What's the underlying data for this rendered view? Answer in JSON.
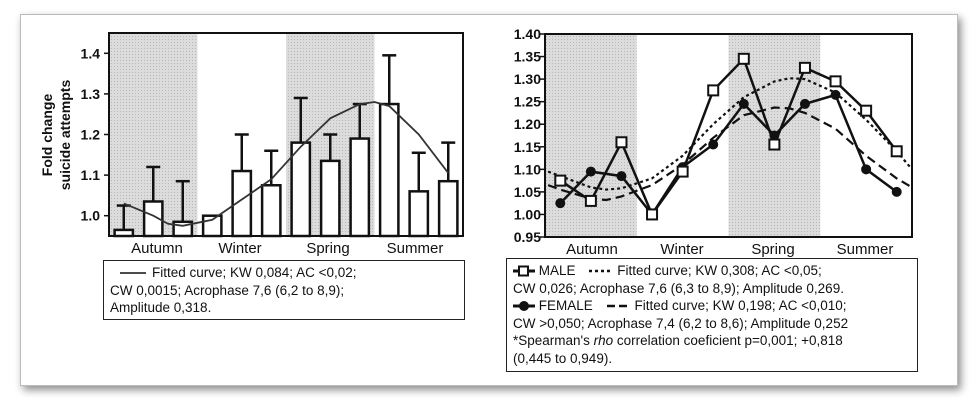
{
  "chart_data": [
    {
      "type": "bar",
      "ylabel": [
        "Fold change",
        "suicide attempts"
      ],
      "ylim": [
        0.95,
        1.45
      ],
      "yticks": [
        "1.0",
        "1.1",
        "1.2",
        "1.3",
        "1.4"
      ],
      "season_labels": [
        "Autumn",
        "Winter",
        "Spring",
        "Summer"
      ],
      "shaded_seasons": [
        "Autumn",
        "Spring"
      ],
      "values": [
        0.965,
        1.035,
        0.985,
        1.0,
        1.11,
        1.075,
        1.18,
        1.135,
        1.19,
        1.275,
        1.06,
        1.085
      ],
      "error_upper": [
        1.025,
        1.12,
        1.085,
        null,
        1.2,
        1.16,
        1.29,
        1.2,
        1.275,
        1.395,
        1.155,
        1.18
      ],
      "fitted_curve": [
        [
          0,
          1.03
        ],
        [
          1,
          1.0
        ],
        [
          1.5,
          0.98
        ],
        [
          2,
          0.975
        ],
        [
          3,
          0.99
        ],
        [
          4,
          1.04
        ],
        [
          5,
          1.09
        ],
        [
          6,
          1.17
        ],
        [
          7,
          1.24
        ],
        [
          8,
          1.275
        ],
        [
          8.5,
          1.28
        ],
        [
          9,
          1.27
        ],
        [
          10,
          1.2
        ],
        [
          11,
          1.105
        ]
      ],
      "legend": {
        "line1": "Fitted curve; KW 0,084; AC <0,02;",
        "line2": "CW 0,0015; Acrophase 7,6 (6,2 to 8,9);",
        "line3": "Amplitude 0,318."
      }
    },
    {
      "type": "line",
      "ylim": [
        0.95,
        1.4
      ],
      "yticks": [
        "0.95",
        "1.00",
        "1.05",
        "1.10",
        "1.15",
        "1.20",
        "1.25",
        "1.30",
        "1.35",
        "1.40"
      ],
      "season_labels": [
        "Autumn",
        "Winter",
        "Spring",
        "Summer"
      ],
      "shaded_seasons": [
        "Autumn",
        "Spring"
      ],
      "series": [
        {
          "name": "MALE",
          "marker": "square-open",
          "values": [
            1.075,
            1.03,
            1.16,
            1.0,
            1.095,
            1.275,
            1.345,
            1.155,
            1.325,
            1.295,
            1.23,
            1.14
          ]
        },
        {
          "name": "FEMALE",
          "marker": "circle-filled",
          "values": [
            1.025,
            1.095,
            1.085,
            1.0,
            1.105,
            1.155,
            1.245,
            1.175,
            1.245,
            1.265,
            1.1,
            1.05
          ]
        }
      ],
      "fitted_male": [
        [
          -0.4,
          1.095
        ],
        [
          0,
          1.085
        ],
        [
          1,
          1.06
        ],
        [
          1.5,
          1.055
        ],
        [
          2,
          1.058
        ],
        [
          3,
          1.08
        ],
        [
          4,
          1.13
        ],
        [
          5,
          1.2
        ],
        [
          6,
          1.26
        ],
        [
          7,
          1.295
        ],
        [
          7.5,
          1.302
        ],
        [
          8,
          1.3
        ],
        [
          9,
          1.27
        ],
        [
          10,
          1.21
        ],
        [
          11,
          1.14
        ],
        [
          11.5,
          1.1
        ]
      ],
      "fitted_female": [
        [
          -0.4,
          1.065
        ],
        [
          0,
          1.055
        ],
        [
          1,
          1.035
        ],
        [
          1.5,
          1.032
        ],
        [
          2,
          1.04
        ],
        [
          3,
          1.065
        ],
        [
          4,
          1.11
        ],
        [
          5,
          1.17
        ],
        [
          6,
          1.22
        ],
        [
          7,
          1.237
        ],
        [
          7.5,
          1.235
        ],
        [
          8,
          1.225
        ],
        [
          9,
          1.19
        ],
        [
          10,
          1.13
        ],
        [
          11,
          1.08
        ],
        [
          11.5,
          1.06
        ]
      ],
      "legend": {
        "male_label": "MALE",
        "male_fit": "Fitted curve; KW 0,308; AC <0,05;",
        "male_line2": "CW 0,026; Acrophase 7,6 (6,3 to 8,9); Amplitude 0,269.",
        "female_label": "FEMALE",
        "female_fit": "Fitted curve; KW 0,198; AC <0,010;",
        "female_line2": "CW >0,050; Acrophase 7,4 (6,2 to 8,6); Amplitude 0,252",
        "note_pre": "*Spearman's ",
        "note_rho": "rho",
        "note_post": " correlation coeficient p=0,001; +0,818",
        "note_line2": "(0,445 to 0,949)."
      }
    }
  ],
  "colors": {
    "shade": "#d4d4d4",
    "ink": "#111111"
  }
}
